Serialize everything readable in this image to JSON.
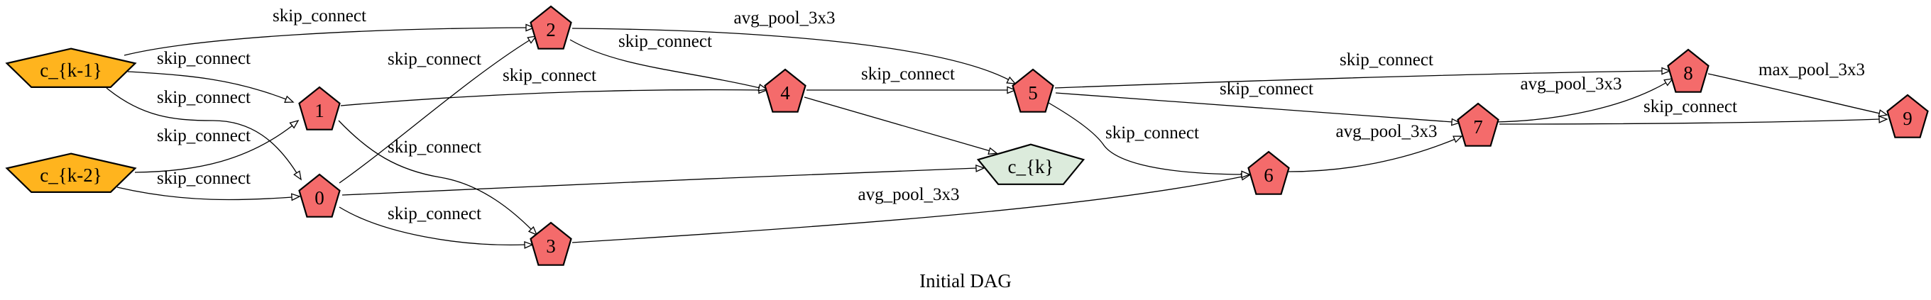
{
  "diagram": {
    "caption": "Initial DAG",
    "colors": {
      "input_node": "#ffb41e",
      "op_node": "#f46b6b",
      "output_node": "#dcebdc",
      "edge": "#000000"
    },
    "nodes": [
      {
        "id": "ck1",
        "label": "c_{k-1}",
        "kind": "input"
      },
      {
        "id": "ck2",
        "label": "c_{k-2}",
        "kind": "input"
      },
      {
        "id": "n0",
        "label": "0",
        "kind": "op"
      },
      {
        "id": "n1",
        "label": "1",
        "kind": "op"
      },
      {
        "id": "n2",
        "label": "2",
        "kind": "op"
      },
      {
        "id": "n3",
        "label": "3",
        "kind": "op"
      },
      {
        "id": "n4",
        "label": "4",
        "kind": "op"
      },
      {
        "id": "n5",
        "label": "5",
        "kind": "op"
      },
      {
        "id": "n6",
        "label": "6",
        "kind": "op"
      },
      {
        "id": "n7",
        "label": "7",
        "kind": "op"
      },
      {
        "id": "n8",
        "label": "8",
        "kind": "op"
      },
      {
        "id": "n9",
        "label": "9",
        "kind": "op"
      },
      {
        "id": "ck",
        "label": "c_{k}",
        "kind": "output"
      }
    ],
    "edges": [
      {
        "from": "ck1",
        "to": "n2",
        "label": "skip_connect"
      },
      {
        "from": "ck1",
        "to": "n1",
        "label": "skip_connect"
      },
      {
        "from": "ck1",
        "to": "n0",
        "label": "skip_connect"
      },
      {
        "from": "ck2",
        "to": "n1",
        "label": "skip_connect"
      },
      {
        "from": "ck2",
        "to": "n0",
        "label": "skip_connect"
      },
      {
        "from": "n0",
        "to": "n2",
        "label": "skip_connect"
      },
      {
        "from": "n0",
        "to": "n3",
        "label": "skip_connect"
      },
      {
        "from": "n0",
        "to": "ck",
        "label": ""
      },
      {
        "from": "n1",
        "to": "n4",
        "label": "skip_connect"
      },
      {
        "from": "n1",
        "to": "n3",
        "label": "skip_connect"
      },
      {
        "from": "n2",
        "to": "n5",
        "label": "avg_pool_3x3"
      },
      {
        "from": "n2",
        "to": "n4",
        "label": "skip_connect"
      },
      {
        "from": "n3",
        "to": "n6",
        "label": "avg_pool_3x3"
      },
      {
        "from": "n4",
        "to": "n5",
        "label": "skip_connect"
      },
      {
        "from": "n4",
        "to": "ck",
        "label": ""
      },
      {
        "from": "n5",
        "to": "n8",
        "label": "skip_connect"
      },
      {
        "from": "n5",
        "to": "n7",
        "label": "skip_connect"
      },
      {
        "from": "n5",
        "to": "n6",
        "label": "skip_connect"
      },
      {
        "from": "n6",
        "to": "n7",
        "label": "avg_pool_3x3"
      },
      {
        "from": "n7",
        "to": "n8",
        "label": "avg_pool_3x3"
      },
      {
        "from": "n7",
        "to": "n9",
        "label": "skip_connect"
      },
      {
        "from": "n8",
        "to": "n9",
        "label": "max_pool_3x3"
      }
    ]
  }
}
